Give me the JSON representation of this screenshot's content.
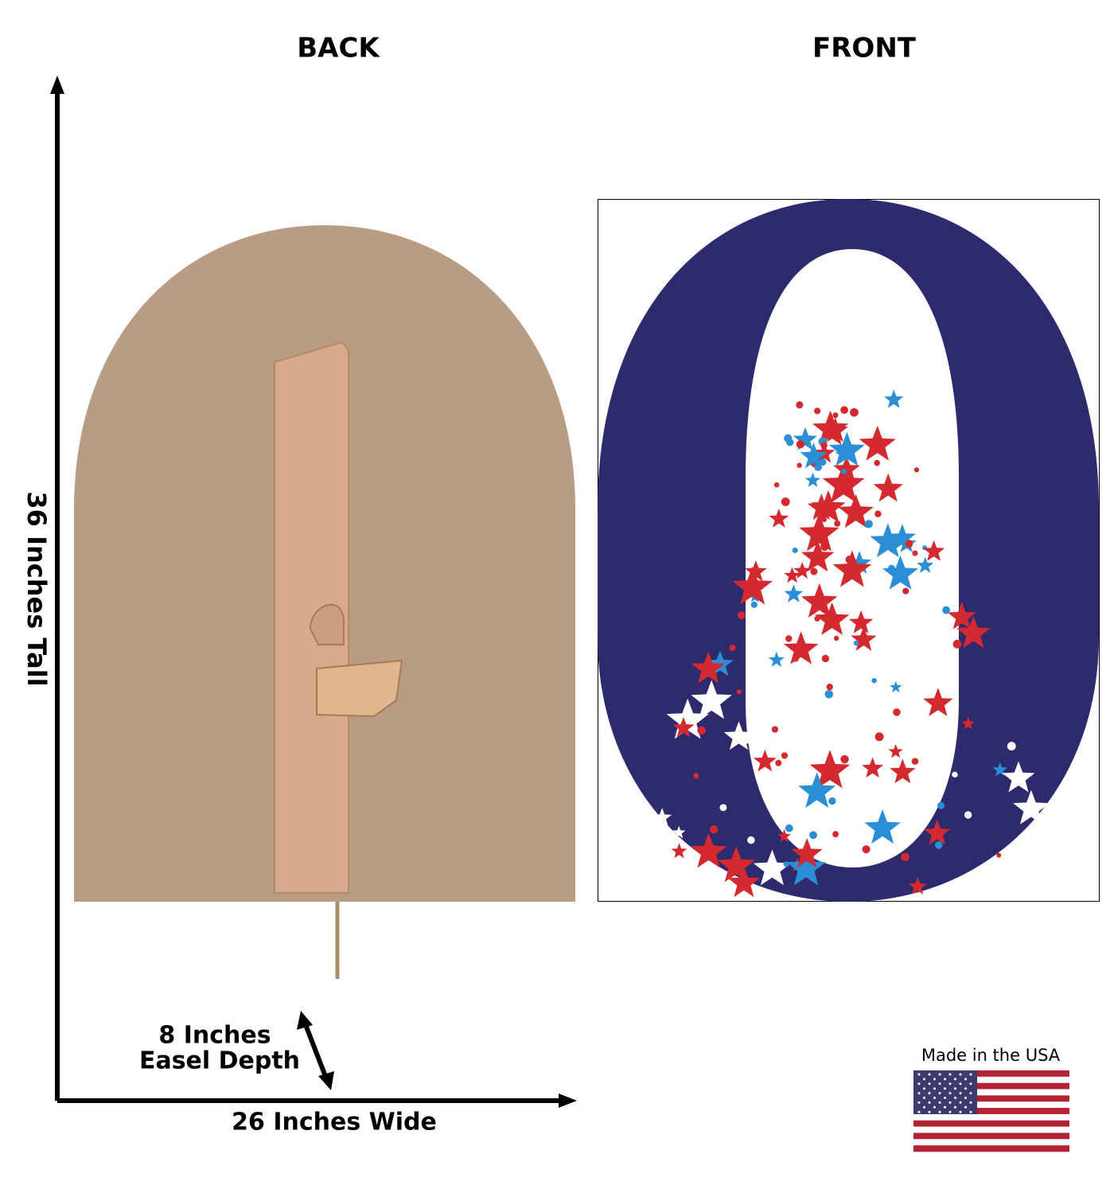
{
  "header": {
    "back": "BACK",
    "front": "FRONT"
  },
  "dimensions": {
    "height": "36 Inches Tall",
    "depth_line1": "8 Inches",
    "depth_line2": "Easel Depth",
    "width": "26 Inches Wide"
  },
  "badge": {
    "text": "Made in the USA"
  }
}
